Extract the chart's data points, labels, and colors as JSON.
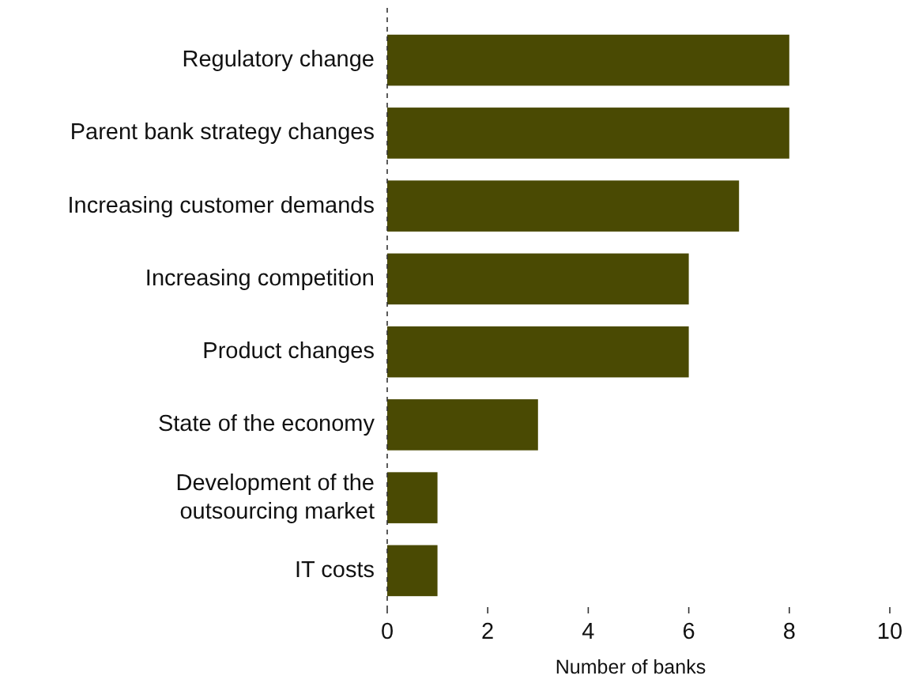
{
  "chart_data": {
    "type": "bar",
    "orientation": "horizontal",
    "xlabel": "Number of banks",
    "categories": [
      "Regulatory change",
      "Parent bank strategy changes",
      "Increasing customer demands",
      "Increasing competition",
      "Product changes",
      "State of the economy",
      "Development of the outsourcing market",
      "IT costs"
    ],
    "values": [
      8,
      8,
      7,
      6,
      6,
      3,
      1,
      1
    ],
    "color": "#4a4a03",
    "xlim": [
      0,
      10
    ],
    "xticks": [
      0,
      2,
      4,
      6,
      8,
      10
    ]
  }
}
